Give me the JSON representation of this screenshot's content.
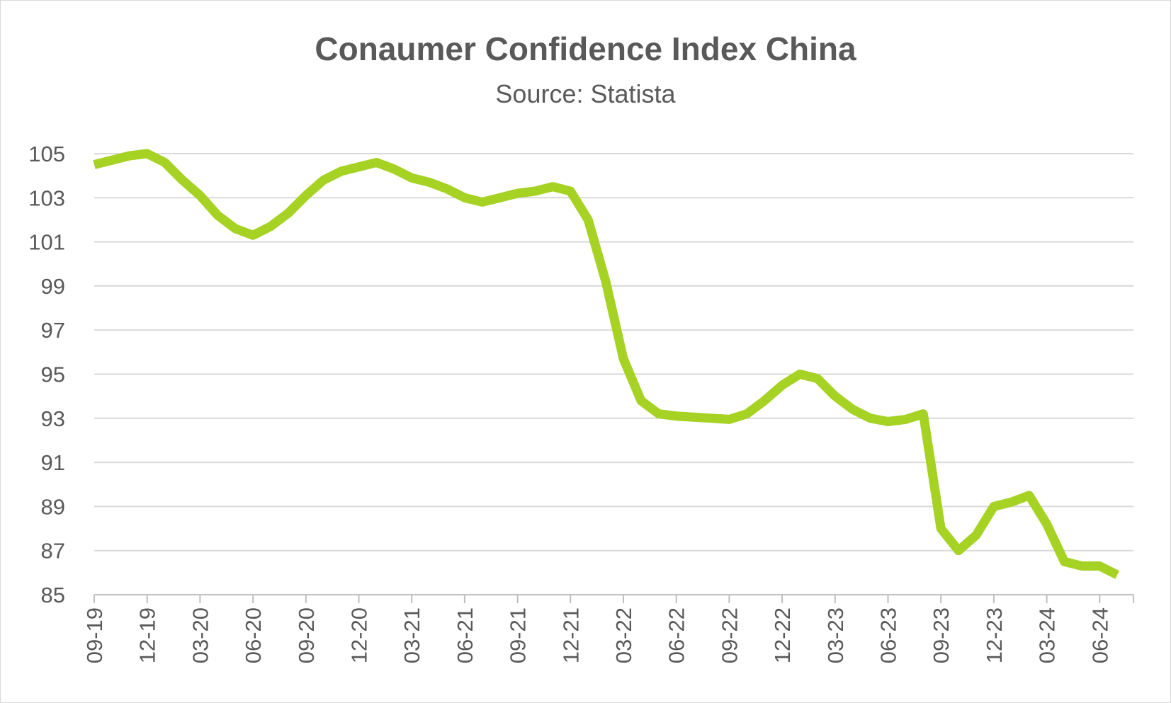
{
  "chart_data": {
    "type": "line",
    "title": "Conaumer Confidence Index China",
    "subtitle": "Source: Statista",
    "xlabel": "",
    "ylabel": "",
    "ylim": [
      85,
      105
    ],
    "yticks": [
      85,
      87,
      89,
      91,
      93,
      95,
      97,
      99,
      101,
      103,
      105
    ],
    "grid": true,
    "legend": "none",
    "x_tick_labels": [
      "09-19",
      "12-19",
      "03-20",
      "06-20",
      "09-20",
      "12-20",
      "03-21",
      "06-21",
      "09-21",
      "12-21",
      "03-22",
      "06-22",
      "09-22",
      "12-22",
      "03-23",
      "06-23",
      "09-23",
      "12-23",
      "03-24",
      "06-24"
    ],
    "x": [
      "09-19",
      "10-19",
      "11-19",
      "12-19",
      "01-20",
      "02-20",
      "03-20",
      "04-20",
      "05-20",
      "06-20",
      "07-20",
      "08-20",
      "09-20",
      "10-20",
      "11-20",
      "12-20",
      "01-21",
      "02-21",
      "03-21",
      "04-21",
      "05-21",
      "06-21",
      "07-21",
      "08-21",
      "09-21",
      "10-21",
      "11-21",
      "12-21",
      "01-22",
      "02-22",
      "03-22",
      "04-22",
      "05-22",
      "06-22",
      "07-22",
      "08-22",
      "09-22",
      "10-22",
      "11-22",
      "12-22",
      "01-23",
      "02-23",
      "03-23",
      "04-23",
      "05-23",
      "06-23",
      "07-23",
      "08-23",
      "09-23",
      "10-23",
      "11-23",
      "12-23",
      "01-24",
      "02-24",
      "03-24",
      "04-24",
      "05-24",
      "06-24",
      "07-24"
    ],
    "series": [
      {
        "color": "#a6d224",
        "values": [
          104.5,
          104.7,
          104.9,
          105.0,
          104.6,
          103.8,
          103.1,
          102.2,
          101.6,
          101.3,
          101.7,
          102.3,
          103.1,
          103.8,
          104.2,
          104.4,
          104.6,
          104.3,
          103.9,
          103.7,
          103.4,
          103.0,
          102.8,
          103.0,
          103.2,
          103.3,
          103.5,
          103.3,
          102.0,
          99.2,
          95.7,
          93.8,
          93.2,
          93.1,
          93.05,
          93.0,
          92.95,
          93.2,
          93.8,
          94.5,
          95.0,
          94.8,
          94.0,
          93.4,
          93.0,
          92.85,
          92.95,
          93.2,
          88.0,
          87.0,
          87.7,
          89.0,
          89.2,
          89.5,
          88.2,
          86.5,
          86.3,
          86.3,
          85.9
        ]
      }
    ]
  }
}
